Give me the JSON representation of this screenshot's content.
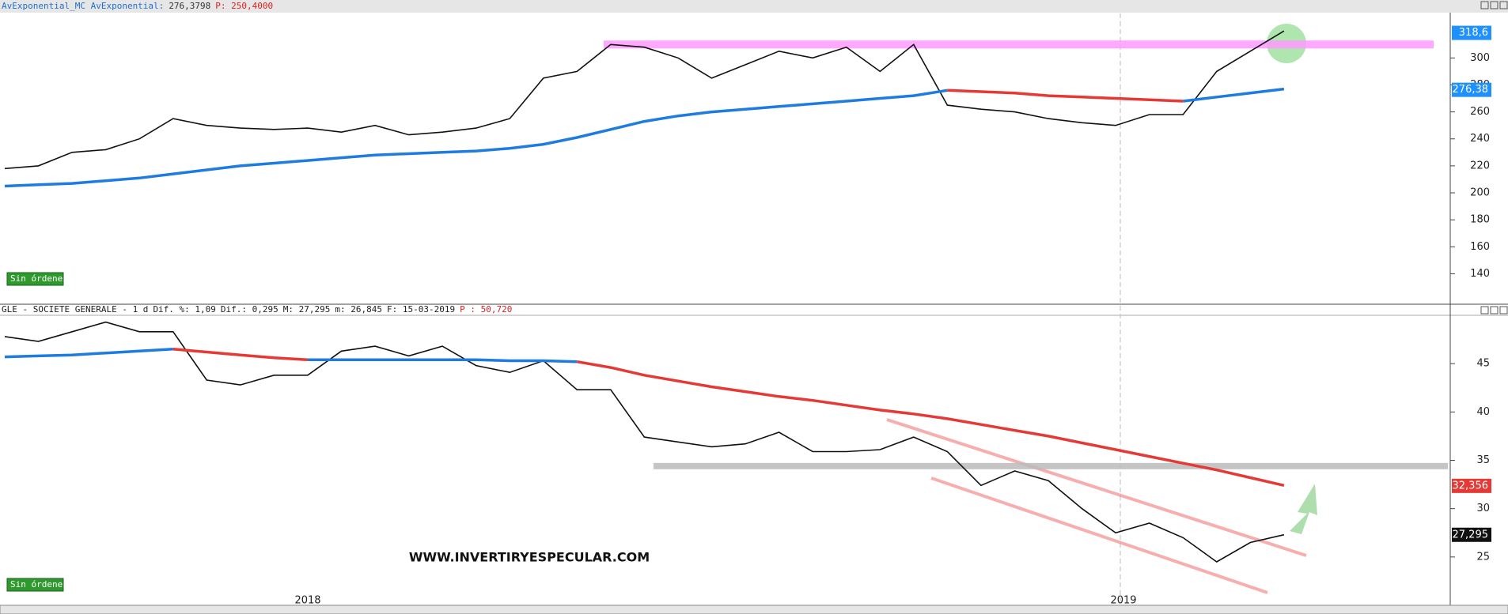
{
  "chart_data": [
    {
      "type": "line",
      "header": [
        {
          "text": "AvExponential_MC AvExponential:",
          "color": "#1f6fd0"
        },
        {
          "text": "276,3798",
          "color": "#333"
        },
        {
          "text": "P: 250,4000",
          "color": "#e02020"
        }
      ],
      "status": "Sin órdenes",
      "ylim": [
        118,
        333
      ],
      "yticks": [
        140,
        160,
        180,
        200,
        220,
        240,
        260,
        280,
        300
      ],
      "levels": [
        {
          "value": 310,
          "color": "#ff99ff"
        }
      ],
      "series": [
        {
          "color": "#111111",
          "values": [
            218,
            220,
            230,
            232,
            240,
            255,
            250,
            248,
            247,
            248,
            245,
            250,
            243,
            245,
            248,
            255,
            285,
            290,
            310,
            308,
            300,
            285,
            295,
            305,
            300,
            308,
            290,
            310,
            265,
            262,
            260,
            255,
            252,
            250,
            258,
            258,
            290,
            305,
            320
          ]
        },
        {
          "color": "#1e7be0",
          "values": [
            205,
            206,
            207,
            209,
            211,
            214,
            217,
            220,
            222,
            224,
            226,
            228,
            229,
            230,
            231,
            233,
            236,
            241,
            247,
            253,
            257,
            260,
            262,
            264,
            266,
            268,
            270,
            272,
            276,
            null,
            null,
            null,
            null,
            null,
            null,
            268,
            271,
            274,
            277
          ]
        },
        {
          "color": "#e53935",
          "values": [
            null,
            null,
            null,
            null,
            null,
            null,
            null,
            null,
            null,
            null,
            null,
            null,
            null,
            null,
            null,
            null,
            null,
            null,
            null,
            null,
            null,
            null,
            null,
            null,
            null,
            null,
            null,
            null,
            276,
            275,
            274,
            272,
            271,
            270,
            269,
            268,
            null,
            null,
            null
          ]
        }
      ],
      "last_labels": [
        {
          "value": 318.6,
          "label": "318,6",
          "color": "#1e90ff"
        },
        {
          "value": 276.38,
          "label": "276,38",
          "color": "#1e90ff"
        }
      ]
    },
    {
      "type": "line",
      "header": [
        {
          "text": "GLE - SOCIETE GENERALE -  1 d",
          "color": "#222"
        },
        {
          "text": "Dif. %: 1,09",
          "color": "#222"
        },
        {
          "text": "Dif.: 0,295",
          "color": "#222"
        },
        {
          "text": "M: 27,295",
          "color": "#222"
        },
        {
          "text": "m: 26,845",
          "color": "#222"
        },
        {
          "text": "F: 15-03-2019",
          "color": "#222"
        },
        {
          "text": "P : 50,720",
          "color": "#e02020"
        }
      ],
      "status": "Sin órdenes",
      "annotations": [
        "WWW.INVERTIRYESPECULAR.COM",
        "2018",
        "2019"
      ],
      "ylim": [
        20,
        50
      ],
      "yticks": [
        25,
        30,
        35,
        40,
        45
      ],
      "levels": [
        {
          "value": 34.4,
          "color": "#bbbbbb"
        }
      ],
      "series": [
        {
          "color": "#111111",
          "values": [
            47.8,
            47.3,
            48.3,
            49.3,
            48.3,
            48.3,
            43.3,
            42.8,
            43.8,
            43.8,
            46.3,
            46.8,
            45.8,
            46.8,
            44.8,
            44.1,
            45.3,
            42.3,
            42.3,
            37.4,
            36.9,
            36.4,
            36.7,
            37.9,
            35.9,
            35.9,
            36.1,
            37.4,
            35.9,
            32.4,
            33.9,
            32.9,
            30,
            27.5,
            28.5,
            27,
            24.5,
            26.5,
            27.3
          ]
        },
        {
          "color": "#1e7be0",
          "values": [
            45.7,
            45.8,
            45.9,
            46.1,
            46.3,
            46.5,
            null,
            null,
            null,
            45.4,
            45.4,
            45.4,
            45.4,
            45.4,
            45.4,
            45.3,
            45.3,
            45.2,
            null,
            null,
            null,
            null,
            null,
            null,
            null,
            null,
            null,
            null,
            null,
            null,
            null,
            null,
            null,
            null,
            null,
            null,
            null,
            null,
            null
          ]
        },
        {
          "color": "#e53935",
          "values": [
            null,
            null,
            null,
            null,
            null,
            46.5,
            46.2,
            45.9,
            45.6,
            45.4,
            null,
            null,
            null,
            null,
            null,
            null,
            null,
            45.2,
            44.6,
            43.8,
            43.2,
            42.6,
            42.1,
            41.6,
            41.2,
            40.7,
            40.2,
            39.8,
            39.3,
            38.7,
            38.1,
            37.5,
            36.8,
            36.1,
            35.4,
            34.7,
            34.0,
            33.2,
            32.4
          ]
        }
      ],
      "last_labels": [
        {
          "value": 32.356,
          "label": "32,356",
          "color": "#e53935"
        },
        {
          "value": 27.295,
          "label": "27,295",
          "color": "#111111"
        }
      ]
    }
  ]
}
